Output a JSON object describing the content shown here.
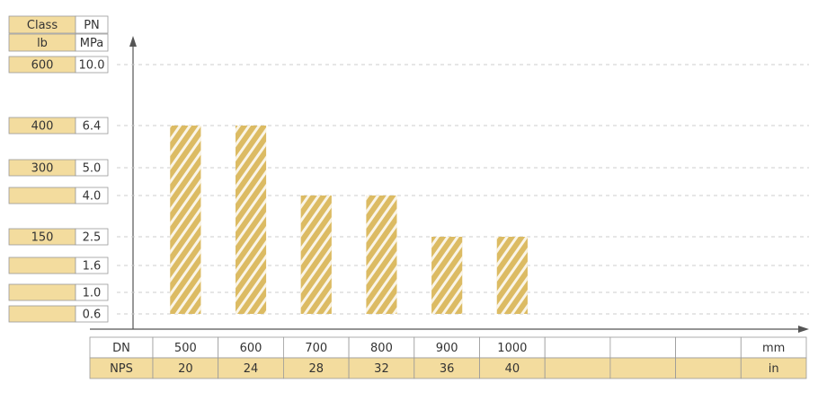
{
  "chart_data": {
    "type": "bar",
    "y_headers": [
      "Class",
      "PN"
    ],
    "y_units": [
      "lb",
      "MPa"
    ],
    "class_labels": [
      "600",
      "400",
      "300",
      null,
      "150",
      null,
      null,
      null
    ],
    "yticks": [
      {
        "value": 10,
        "label": "10.0"
      },
      6.4,
      {
        "value": 5,
        "label": "5.0"
      },
      {
        "value": 4,
        "label": "4.0"
      },
      2.5,
      1.6,
      {
        "value": 1,
        "label": "1.0"
      },
      0.6
    ],
    "x_headers": [
      "DN",
      "NPS"
    ],
    "x_units": [
      "mm",
      "in"
    ],
    "categories": [
      500,
      600,
      700,
      800,
      900,
      1000,
      null,
      null,
      null
    ],
    "nps": [
      20,
      24,
      28,
      32,
      36,
      40,
      null,
      null,
      null
    ],
    "values": [
      6.4,
      6.4,
      4.0,
      4.0,
      2.5,
      2.5,
      null,
      null,
      null
    ],
    "color": "#dcbb63",
    "grid": true
  }
}
